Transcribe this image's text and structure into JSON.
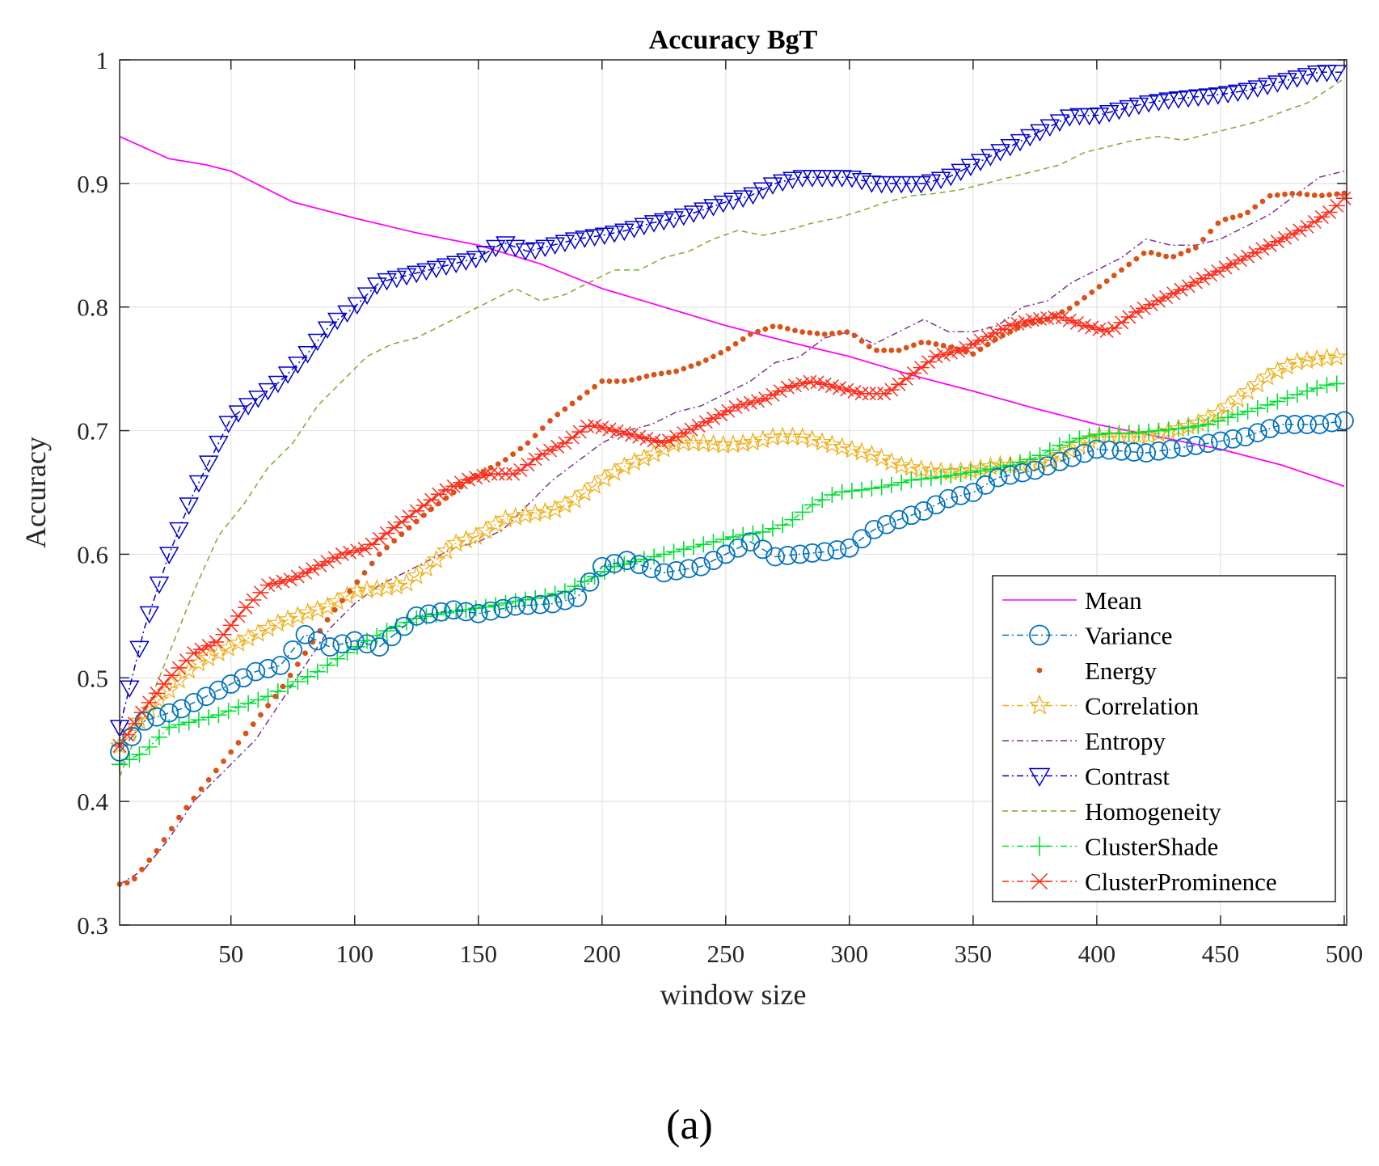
{
  "chart_data": {
    "type": "line",
    "title": "Accuracy BgT",
    "xlabel": "window size",
    "ylabel": "Accuracy",
    "xlim": [
      5,
      501
    ],
    "ylim": [
      0.3,
      1.0
    ],
    "xticks": [
      50,
      100,
      150,
      200,
      250,
      300,
      350,
      400,
      450,
      500
    ],
    "yticks": [
      0.3,
      0.4,
      0.5,
      0.6,
      0.7,
      0.8,
      0.9,
      1.0
    ],
    "xtick_labels": [
      "50",
      "100",
      "150",
      "200",
      "250",
      "300",
      "350",
      "400",
      "450",
      "500"
    ],
    "ytick_labels": [
      "0.3",
      "0.4",
      "0.5",
      "0.6",
      "0.7",
      "0.8",
      "0.9",
      "1"
    ],
    "grid": true,
    "legend_position": "bottom-right",
    "caption": "(a)",
    "series": [
      {
        "name": "Mean",
        "color": "#ff00ff",
        "line": "solid",
        "marker": "none",
        "x": [
          5,
          25,
          40,
          50,
          75,
          100,
          125,
          150,
          175,
          200,
          225,
          250,
          275,
          300,
          325,
          350,
          375,
          400,
          425,
          450,
          475,
          500
        ],
        "y": [
          0.938,
          0.92,
          0.915,
          0.91,
          0.885,
          0.872,
          0.86,
          0.85,
          0.835,
          0.815,
          0.8,
          0.785,
          0.772,
          0.76,
          0.745,
          0.732,
          0.718,
          0.705,
          0.695,
          0.685,
          0.672,
          0.655
        ]
      },
      {
        "name": "Variance",
        "color": "#0072bd",
        "line": "dashdot",
        "marker": "circle",
        "x": [
          5,
          15,
          30,
          45,
          60,
          70,
          80,
          90,
          100,
          110,
          125,
          140,
          150,
          165,
          180,
          190,
          200,
          210,
          225,
          240,
          250,
          260,
          270,
          280,
          290,
          300,
          310,
          320,
          330,
          340,
          350,
          360,
          375,
          385,
          400,
          420,
          440,
          460,
          475,
          490,
          500
        ],
        "y": [
          0.44,
          0.465,
          0.475,
          0.49,
          0.505,
          0.51,
          0.535,
          0.525,
          0.53,
          0.525,
          0.55,
          0.555,
          0.552,
          0.558,
          0.56,
          0.565,
          0.59,
          0.595,
          0.585,
          0.59,
          0.6,
          0.61,
          0.598,
          0.6,
          0.602,
          0.605,
          0.62,
          0.628,
          0.635,
          0.645,
          0.65,
          0.662,
          0.668,
          0.675,
          0.685,
          0.682,
          0.688,
          0.695,
          0.705,
          0.705,
          0.708
        ]
      },
      {
        "name": "Energy",
        "color": "#d95319",
        "line": "none",
        "marker": "dot",
        "x": [
          5,
          10,
          20,
          30,
          40,
          50,
          60,
          70,
          80,
          90,
          100,
          110,
          120,
          130,
          140,
          150,
          160,
          170,
          180,
          190,
          200,
          210,
          220,
          230,
          240,
          250,
          260,
          270,
          280,
          290,
          300,
          310,
          320,
          330,
          340,
          350,
          360,
          370,
          380,
          390,
          400,
          410,
          420,
          430,
          440,
          450,
          460,
          470,
          480,
          490,
          500
        ],
        "y": [
          0.333,
          0.335,
          0.36,
          0.39,
          0.415,
          0.44,
          0.465,
          0.49,
          0.52,
          0.55,
          0.575,
          0.6,
          0.618,
          0.635,
          0.65,
          0.665,
          0.675,
          0.69,
          0.71,
          0.725,
          0.74,
          0.74,
          0.745,
          0.748,
          0.755,
          0.765,
          0.778,
          0.785,
          0.78,
          0.778,
          0.78,
          0.765,
          0.765,
          0.772,
          0.768,
          0.762,
          0.775,
          0.785,
          0.79,
          0.8,
          0.815,
          0.83,
          0.845,
          0.84,
          0.848,
          0.87,
          0.875,
          0.89,
          0.892,
          0.89,
          0.892
        ]
      },
      {
        "name": "Correlation",
        "color": "#edb120",
        "line": "dashdot",
        "marker": "pentagram",
        "x": [
          5,
          15,
          25,
          35,
          50,
          60,
          70,
          80,
          90,
          100,
          110,
          120,
          130,
          140,
          150,
          160,
          170,
          180,
          190,
          200,
          210,
          220,
          230,
          240,
          250,
          260,
          270,
          280,
          290,
          300,
          310,
          320,
          330,
          340,
          350,
          360,
          370,
          380,
          390,
          400,
          410,
          420,
          430,
          440,
          450,
          460,
          470,
          480,
          490,
          500
        ],
        "y": [
          0.445,
          0.47,
          0.49,
          0.51,
          0.525,
          0.535,
          0.545,
          0.552,
          0.558,
          0.57,
          0.572,
          0.575,
          0.59,
          0.608,
          0.615,
          0.628,
          0.632,
          0.635,
          0.645,
          0.66,
          0.672,
          0.68,
          0.69,
          0.69,
          0.688,
          0.69,
          0.695,
          0.695,
          0.69,
          0.685,
          0.68,
          0.672,
          0.668,
          0.666,
          0.668,
          0.672,
          0.672,
          0.675,
          0.685,
          0.695,
          0.695,
          0.695,
          0.7,
          0.705,
          0.715,
          0.73,
          0.745,
          0.755,
          0.758,
          0.76
        ]
      },
      {
        "name": "Entropy",
        "color": "#7e2f8e",
        "line": "dashdot",
        "marker": "none",
        "x": [
          5,
          15,
          25,
          35,
          50,
          60,
          70,
          80,
          90,
          100,
          110,
          120,
          130,
          140,
          150,
          160,
          170,
          180,
          190,
          200,
          210,
          220,
          230,
          240,
          250,
          260,
          270,
          280,
          290,
          300,
          310,
          320,
          330,
          340,
          350,
          360,
          370,
          380,
          390,
          400,
          410,
          420,
          430,
          440,
          450,
          460,
          470,
          480,
          490,
          500
        ],
        "y": [
          0.333,
          0.345,
          0.37,
          0.4,
          0.43,
          0.45,
          0.48,
          0.51,
          0.54,
          0.56,
          0.575,
          0.585,
          0.595,
          0.605,
          0.61,
          0.62,
          0.64,
          0.66,
          0.675,
          0.69,
          0.7,
          0.705,
          0.715,
          0.72,
          0.73,
          0.74,
          0.755,
          0.76,
          0.775,
          0.78,
          0.77,
          0.78,
          0.79,
          0.78,
          0.78,
          0.785,
          0.8,
          0.805,
          0.82,
          0.83,
          0.84,
          0.855,
          0.85,
          0.85,
          0.855,
          0.865,
          0.875,
          0.89,
          0.905,
          0.91
        ]
      },
      {
        "name": "Contrast",
        "color": "#0000cc",
        "line": "dashdot",
        "marker": "triangle-down",
        "x": [
          5,
          10,
          15,
          20,
          25,
          30,
          35,
          40,
          45,
          50,
          60,
          70,
          80,
          90,
          100,
          110,
          120,
          130,
          140,
          150,
          160,
          170,
          180,
          190,
          200,
          210,
          220,
          230,
          240,
          250,
          260,
          270,
          280,
          290,
          300,
          310,
          320,
          330,
          340,
          350,
          360,
          370,
          380,
          390,
          400,
          410,
          420,
          430,
          440,
          450,
          460,
          470,
          480,
          490,
          500
        ],
        "y": [
          0.46,
          0.5,
          0.54,
          0.57,
          0.6,
          0.625,
          0.65,
          0.67,
          0.69,
          0.71,
          0.725,
          0.74,
          0.76,
          0.785,
          0.8,
          0.82,
          0.825,
          0.83,
          0.835,
          0.84,
          0.852,
          0.845,
          0.85,
          0.855,
          0.858,
          0.862,
          0.868,
          0.872,
          0.878,
          0.885,
          0.89,
          0.9,
          0.905,
          0.905,
          0.905,
          0.9,
          0.9,
          0.9,
          0.905,
          0.915,
          0.925,
          0.935,
          0.945,
          0.955,
          0.955,
          0.96,
          0.965,
          0.968,
          0.97,
          0.972,
          0.975,
          0.98,
          0.985,
          0.99,
          0.99
        ]
      },
      {
        "name": "Homogeneity",
        "color": "#77ac30",
        "line": "dashed",
        "marker": "none",
        "x": [
          5,
          15,
          25,
          35,
          45,
          55,
          65,
          75,
          85,
          95,
          105,
          115,
          125,
          135,
          145,
          155,
          165,
          175,
          185,
          195,
          205,
          215,
          225,
          235,
          245,
          255,
          265,
          275,
          285,
          295,
          305,
          315,
          325,
          335,
          345,
          355,
          365,
          375,
          385,
          395,
          405,
          415,
          425,
          435,
          445,
          455,
          465,
          475,
          485,
          495,
          500
        ],
        "y": [
          0.42,
          0.47,
          0.52,
          0.57,
          0.615,
          0.64,
          0.67,
          0.69,
          0.72,
          0.74,
          0.76,
          0.77,
          0.775,
          0.785,
          0.795,
          0.805,
          0.815,
          0.805,
          0.81,
          0.82,
          0.83,
          0.83,
          0.84,
          0.845,
          0.855,
          0.862,
          0.858,
          0.862,
          0.868,
          0.872,
          0.878,
          0.885,
          0.89,
          0.892,
          0.895,
          0.9,
          0.905,
          0.91,
          0.915,
          0.925,
          0.93,
          0.935,
          0.938,
          0.935,
          0.94,
          0.945,
          0.95,
          0.958,
          0.965,
          0.978,
          0.985
        ]
      },
      {
        "name": "ClusterShade",
        "color": "#00dd33",
        "line": "dashdot",
        "marker": "plus",
        "x": [
          5,
          15,
          25,
          35,
          45,
          55,
          65,
          75,
          85,
          95,
          105,
          115,
          125,
          135,
          145,
          155,
          165,
          175,
          185,
          195,
          205,
          215,
          225,
          235,
          245,
          255,
          265,
          275,
          285,
          295,
          305,
          315,
          325,
          335,
          345,
          355,
          365,
          375,
          385,
          395,
          405,
          415,
          425,
          435,
          445,
          455,
          465,
          475,
          485,
          495,
          500
        ],
        "y": [
          0.43,
          0.44,
          0.46,
          0.465,
          0.47,
          0.478,
          0.485,
          0.495,
          0.505,
          0.518,
          0.53,
          0.54,
          0.548,
          0.552,
          0.555,
          0.558,
          0.562,
          0.565,
          0.57,
          0.58,
          0.59,
          0.595,
          0.6,
          0.605,
          0.61,
          0.615,
          0.618,
          0.625,
          0.64,
          0.65,
          0.652,
          0.655,
          0.66,
          0.662,
          0.665,
          0.668,
          0.672,
          0.678,
          0.688,
          0.695,
          0.698,
          0.698,
          0.7,
          0.702,
          0.705,
          0.712,
          0.718,
          0.725,
          0.732,
          0.738,
          0.738
        ]
      },
      {
        "name": "ClusterProminence",
        "color": "#ff2a1a",
        "line": "dashdot",
        "marker": "asterisk",
        "x": [
          5,
          15,
          25,
          35,
          45,
          55,
          65,
          75,
          85,
          95,
          105,
          115,
          125,
          135,
          145,
          155,
          165,
          175,
          185,
          195,
          205,
          215,
          225,
          235,
          245,
          255,
          265,
          275,
          285,
          295,
          305,
          315,
          325,
          335,
          345,
          355,
          365,
          375,
          385,
          395,
          405,
          415,
          425,
          435,
          445,
          455,
          465,
          475,
          485,
          495,
          500
        ],
        "y": [
          0.445,
          0.475,
          0.5,
          0.52,
          0.53,
          0.555,
          0.575,
          0.58,
          0.59,
          0.6,
          0.605,
          0.62,
          0.635,
          0.65,
          0.66,
          0.665,
          0.665,
          0.68,
          0.69,
          0.705,
          0.7,
          0.695,
          0.69,
          0.7,
          0.71,
          0.72,
          0.725,
          0.735,
          0.74,
          0.735,
          0.73,
          0.73,
          0.745,
          0.76,
          0.765,
          0.775,
          0.785,
          0.79,
          0.792,
          0.785,
          0.78,
          0.795,
          0.805,
          0.815,
          0.825,
          0.835,
          0.845,
          0.855,
          0.865,
          0.878,
          0.888
        ]
      }
    ]
  }
}
